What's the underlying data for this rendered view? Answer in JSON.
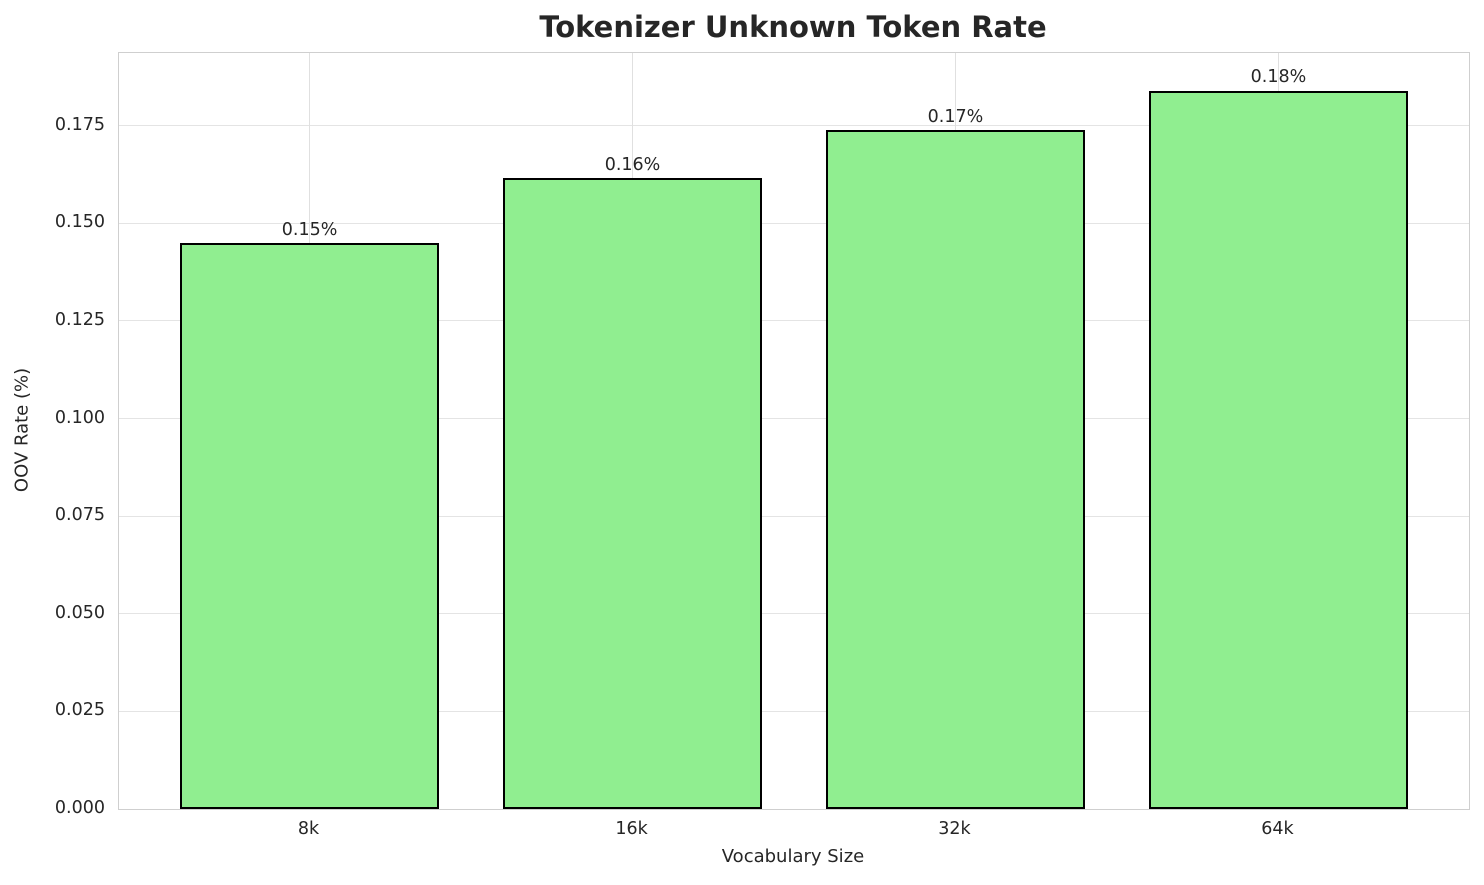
{
  "chart_data": {
    "type": "bar",
    "title": "Tokenizer Unknown Token Rate",
    "xlabel": "Vocabulary Size",
    "ylabel": "OOV Rate (%)",
    "categories": [
      "8k",
      "16k",
      "32k",
      "64k"
    ],
    "values": [
      0.145,
      0.1615,
      0.174,
      0.184
    ],
    "bar_labels": [
      "0.15%",
      "0.16%",
      "0.17%",
      "0.18%"
    ],
    "yticks": [
      0.0,
      0.025,
      0.05,
      0.075,
      0.1,
      0.125,
      0.15,
      0.175
    ],
    "ytick_labels": [
      "0.000",
      "0.025",
      "0.050",
      "0.075",
      "0.100",
      "0.125",
      "0.150",
      "0.175"
    ],
    "ylim": [
      0,
      0.1936
    ],
    "bar_width_fraction": 0.8,
    "grid": true,
    "legend": "none",
    "colors": {
      "bar_fill": "#90EE90",
      "bar_edge": "#000000",
      "grid_line": "#e4e4e4",
      "spine": "#cfcfcf",
      "text": "#262626",
      "background": "#ffffff"
    }
  }
}
